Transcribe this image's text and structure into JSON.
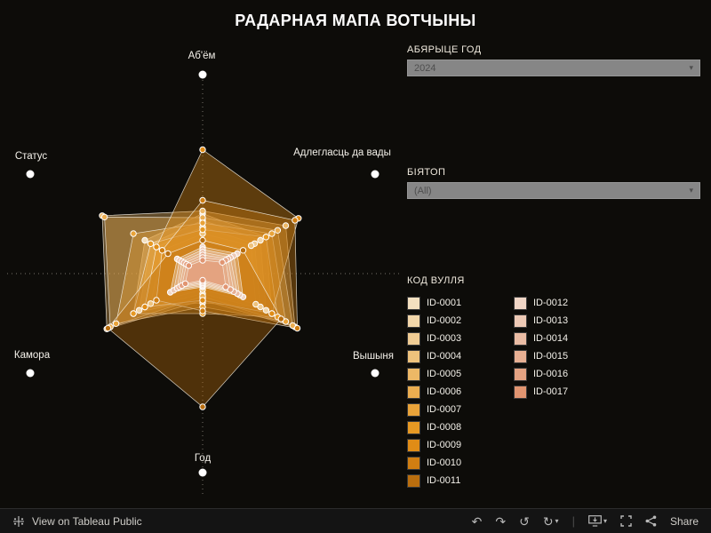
{
  "title": "РАДАРНАЯ МАПА ВОТЧЫНЫ",
  "filters": {
    "year": {
      "label": "АБЯРЫЦЕ ГОД",
      "value": "2024"
    },
    "biotope": {
      "label": "БІЯТОП",
      "value": "(All)"
    }
  },
  "legend": {
    "title": "КОД ВУЛЛЯ"
  },
  "chart_data": {
    "type": "radar",
    "axes": [
      "Аб'ём",
      "Адлегласць да вады",
      "Вышыня",
      "Год",
      "Камора",
      "Статус"
    ],
    "value_range": [
      0,
      1
    ],
    "legend_position": "right",
    "series": [
      {
        "id": "ID-0001",
        "color": "#f3e0c0",
        "values": [
          0.45,
          0.55,
          0.6,
          0.18,
          0.6,
          0.5
        ]
      },
      {
        "id": "ID-0002",
        "color": "#f2d6a9",
        "values": [
          0.4,
          0.5,
          0.55,
          0.15,
          0.55,
          0.45
        ]
      },
      {
        "id": "ID-0003",
        "color": "#f0cc93",
        "values": [
          0.35,
          0.45,
          0.5,
          0.22,
          0.5,
          0.4
        ]
      },
      {
        "id": "ID-0004",
        "color": "#eec27c",
        "values": [
          0.3,
          0.42,
          0.46,
          0.12,
          0.45,
          0.35
        ]
      },
      {
        "id": "ID-0005",
        "color": "#edb866",
        "values": [
          0.47,
          0.72,
          0.8,
          0.2,
          0.83,
          0.87
        ]
      },
      {
        "id": "ID-0006",
        "color": "#ebad50",
        "values": [
          0.42,
          0.65,
          0.78,
          0.17,
          0.8,
          0.85
        ]
      },
      {
        "id": "ID-0007",
        "color": "#e9a339",
        "values": [
          0.38,
          0.6,
          0.72,
          0.25,
          0.75,
          0.6
        ]
      },
      {
        "id": "ID-0008",
        "color": "#e79923",
        "values": [
          0.33,
          0.55,
          0.65,
          0.3,
          0.6,
          0.45
        ]
      },
      {
        "id": "ID-0009",
        "color": "#e08c16",
        "values": [
          0.93,
          0.83,
          0.6,
          0.2,
          0.5,
          0.4
        ]
      },
      {
        "id": "ID-0010",
        "color": "#d07e12",
        "values": [
          0.55,
          0.8,
          0.82,
          0.28,
          0.4,
          0.35
        ]
      },
      {
        "id": "ID-0011",
        "color": "#ba6e0e",
        "values": [
          0.25,
          0.35,
          0.68,
          1.0,
          0.82,
          0.3
        ]
      },
      {
        "id": "ID-0012",
        "color": "#f0d6c6",
        "values": [
          0.2,
          0.3,
          0.35,
          0.1,
          0.28,
          0.22
        ]
      },
      {
        "id": "ID-0013",
        "color": "#edc9b5",
        "values": [
          0.18,
          0.27,
          0.32,
          0.09,
          0.25,
          0.2
        ]
      },
      {
        "id": "ID-0014",
        "color": "#eabca4",
        "values": [
          0.16,
          0.24,
          0.3,
          0.08,
          0.22,
          0.18
        ]
      },
      {
        "id": "ID-0015",
        "color": "#e7af93",
        "values": [
          0.14,
          0.22,
          0.27,
          0.07,
          0.2,
          0.16
        ]
      },
      {
        "id": "ID-0016",
        "color": "#e4a282",
        "values": [
          0.12,
          0.2,
          0.24,
          0.06,
          0.18,
          0.14
        ]
      },
      {
        "id": "ID-0017",
        "color": "#e19571",
        "values": [
          0.1,
          0.17,
          0.2,
          0.05,
          0.15,
          0.12
        ]
      }
    ]
  },
  "toolbar": {
    "view_label": "View on Tableau Public",
    "share_label": "Share",
    "icons": [
      {
        "name": "undo",
        "glyph": "↶"
      },
      {
        "name": "redo",
        "glyph": "↷"
      },
      {
        "name": "reset",
        "glyph": "↺"
      },
      {
        "name": "refresh",
        "glyph": "↻"
      }
    ]
  }
}
